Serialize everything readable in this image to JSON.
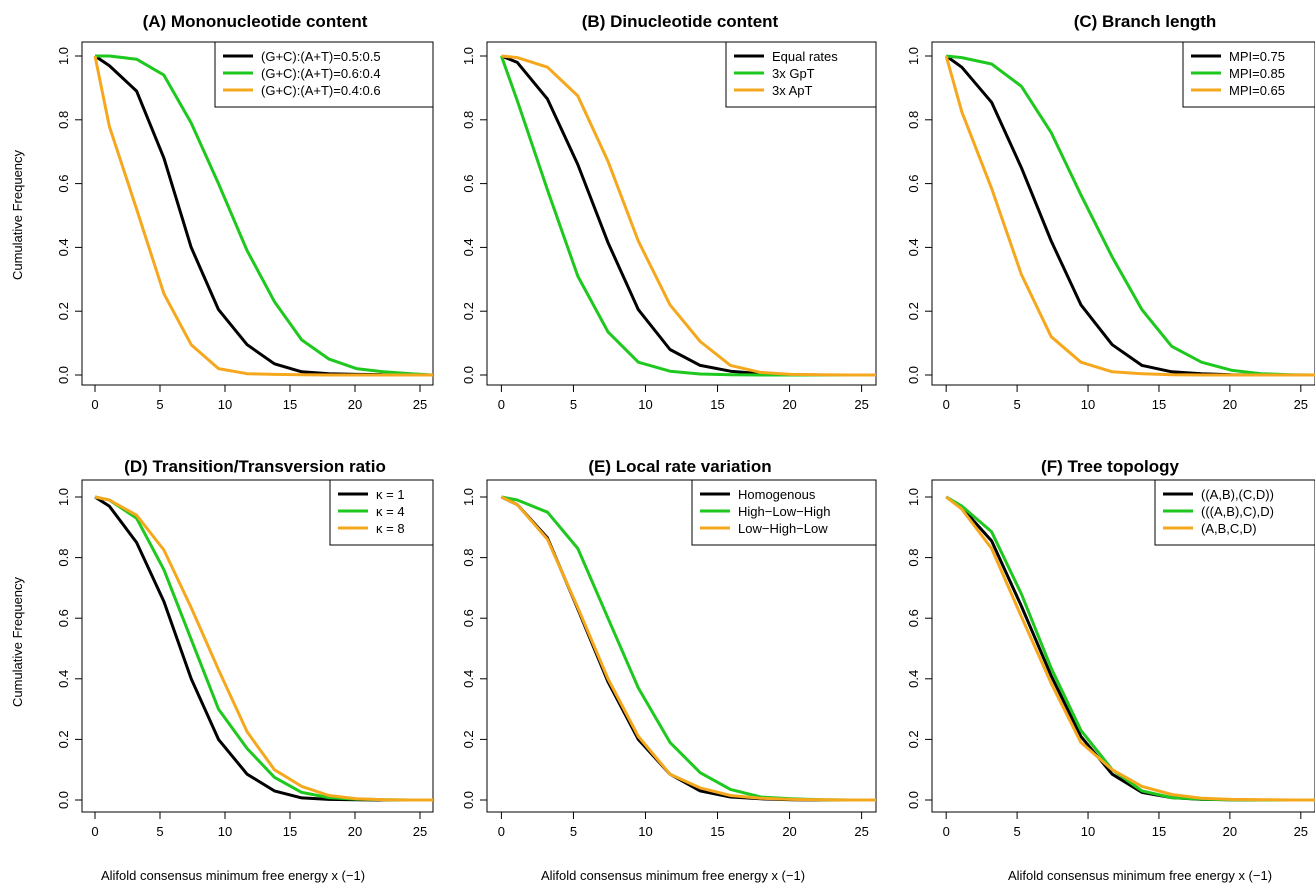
{
  "figure": {
    "xlabel": "Alifold consensus minimum free energy x (−1)",
    "ylabel": "Cumulative Frequency"
  },
  "colors": {
    "black": "#000000",
    "green": "#1ec81e",
    "orange": "#f5a81e"
  },
  "chart_data": [
    {
      "type": "line",
      "title": "(A) Mononucleotide content",
      "xlabel": "Alifold consensus minimum free energy x (−1)",
      "ylabel": "Cumulative Frequency",
      "xlim": [
        -1,
        26
      ],
      "ylim": [
        0,
        1
      ],
      "xticks": [
        "0",
        "5",
        "10",
        "15",
        "20",
        "25"
      ],
      "yticks": [
        "0.0",
        "0.2",
        "0.4",
        "0.6",
        "0.8",
        "1.0"
      ],
      "legend_position": "top-right",
      "x": [
        0,
        1.1,
        3.2,
        5.3,
        7.4,
        9.5,
        11.7,
        13.8,
        15.9,
        18,
        20.1,
        22.2,
        24.3,
        26
      ],
      "series": [
        {
          "name": "(G+C):(A+T)=0.5:0.5",
          "color": "#000000",
          "values": [
            1.0,
            0.97,
            0.89,
            0.68,
            0.4,
            0.205,
            0.095,
            0.035,
            0.01,
            0.004,
            0.002,
            0.001,
            0.0,
            0.0
          ]
        },
        {
          "name": "(G+C):(A+T)=0.6:0.4",
          "color": "#1ec81e",
          "values": [
            1.0,
            1.0,
            0.99,
            0.94,
            0.79,
            0.6,
            0.39,
            0.23,
            0.11,
            0.05,
            0.02,
            0.01,
            0.004,
            0.0
          ]
        },
        {
          "name": "(G+C):(A+T)=0.4:0.6",
          "color": "#f5a81e",
          "values": [
            1.0,
            0.78,
            0.52,
            0.255,
            0.095,
            0.02,
            0.004,
            0.002,
            0.001,
            0.0,
            0.0,
            0.0,
            0.0,
            0.0
          ]
        }
      ]
    },
    {
      "type": "line",
      "title": "(B) Dinucleotide content",
      "xlabel": "Alifold consensus minimum free energy x (−1)",
      "ylabel": "",
      "xlim": [
        -1,
        26
      ],
      "ylim": [
        0,
        1
      ],
      "xticks": [
        "0",
        "5",
        "10",
        "15",
        "20",
        "25"
      ],
      "yticks": [
        "0.0",
        "0.2",
        "0.4",
        "0.6",
        "0.8",
        "1.0"
      ],
      "legend_position": "top-right",
      "x": [
        0,
        1.1,
        3.2,
        5.3,
        7.4,
        9.5,
        11.7,
        13.8,
        15.9,
        18,
        20.1,
        22.2,
        24.3,
        26
      ],
      "series": [
        {
          "name": "Equal rates",
          "color": "#000000",
          "values": [
            1.0,
            0.98,
            0.865,
            0.66,
            0.415,
            0.205,
            0.08,
            0.03,
            0.012,
            0.004,
            0.001,
            0.0,
            0.0,
            0.0
          ]
        },
        {
          "name": "3x GpT",
          "color": "#1ec81e",
          "values": [
            1.0,
            0.86,
            0.58,
            0.31,
            0.135,
            0.04,
            0.012,
            0.003,
            0.001,
            0.0,
            0.0,
            0.0,
            0.0,
            0.0
          ]
        },
        {
          "name": "3x ApT",
          "color": "#f5a81e",
          "values": [
            1.0,
            0.995,
            0.965,
            0.875,
            0.67,
            0.42,
            0.22,
            0.105,
            0.03,
            0.008,
            0.002,
            0.001,
            0.0,
            0.0
          ]
        }
      ]
    },
    {
      "type": "line",
      "title": "(C) Branch length",
      "xlabel": "Alifold consensus minimum free energy x (−1)",
      "ylabel": "",
      "xlim": [
        -1,
        26
      ],
      "ylim": [
        0,
        1
      ],
      "xticks": [
        "0",
        "5",
        "10",
        "15",
        "20",
        "25"
      ],
      "yticks": [
        "0.0",
        "0.2",
        "0.4",
        "0.6",
        "0.8",
        "1.0"
      ],
      "legend_position": "top-right",
      "x": [
        0,
        1.1,
        3.2,
        5.3,
        7.4,
        9.5,
        11.7,
        13.8,
        15.9,
        18,
        20.1,
        22.2,
        24.3,
        26
      ],
      "series": [
        {
          "name": "MPI=0.75",
          "color": "#000000",
          "values": [
            1.0,
            0.965,
            0.855,
            0.65,
            0.42,
            0.22,
            0.095,
            0.03,
            0.01,
            0.004,
            0.001,
            0.0,
            0.0,
            0.0
          ]
        },
        {
          "name": "MPI=0.85",
          "color": "#1ec81e",
          "values": [
            1.0,
            0.995,
            0.975,
            0.905,
            0.76,
            0.565,
            0.37,
            0.205,
            0.09,
            0.04,
            0.015,
            0.004,
            0.001,
            0.0
          ]
        },
        {
          "name": "MPI=0.65",
          "color": "#f5a81e",
          "values": [
            1.0,
            0.825,
            0.585,
            0.315,
            0.12,
            0.04,
            0.01,
            0.004,
            0.001,
            0.0,
            0.0,
            0.0,
            0.0,
            0.0
          ]
        }
      ]
    },
    {
      "type": "line",
      "title": "(D) Transition/Transversion ratio",
      "xlabel": "Alifold consensus minimum free energy x (−1)",
      "ylabel": "Cumulative Frequency",
      "xlim": [
        -1,
        26
      ],
      "ylim": [
        0,
        1
      ],
      "xticks": [
        "0",
        "5",
        "10",
        "15",
        "20",
        "25"
      ],
      "yticks": [
        "0.0",
        "0.2",
        "0.4",
        "0.6",
        "0.8",
        "1.0"
      ],
      "legend_position": "top-right",
      "x": [
        0,
        1.1,
        3.2,
        5.3,
        7.4,
        9.5,
        11.7,
        13.8,
        15.9,
        18,
        20.1,
        22.2,
        24.3,
        26
      ],
      "series": [
        {
          "name": "κ = 1",
          "color": "#000000",
          "values": [
            1.0,
            0.97,
            0.85,
            0.655,
            0.4,
            0.2,
            0.085,
            0.03,
            0.007,
            0.002,
            0.001,
            0.0,
            0.0,
            0.0
          ]
        },
        {
          "name": "κ = 4",
          "color": "#1ec81e",
          "values": [
            1.0,
            0.99,
            0.93,
            0.76,
            0.53,
            0.3,
            0.17,
            0.075,
            0.025,
            0.008,
            0.003,
            0.001,
            0.0,
            0.0
          ]
        },
        {
          "name": "κ = 8",
          "color": "#f5a81e",
          "values": [
            1.0,
            0.99,
            0.94,
            0.825,
            0.635,
            0.43,
            0.225,
            0.1,
            0.045,
            0.015,
            0.004,
            0.001,
            0.0,
            0.0
          ]
        }
      ]
    },
    {
      "type": "line",
      "title": "(E) Local rate variation",
      "xlabel": "Alifold consensus minimum free energy x (−1)",
      "ylabel": "",
      "xlim": [
        -1,
        26
      ],
      "ylim": [
        0,
        1
      ],
      "xticks": [
        "0",
        "5",
        "10",
        "15",
        "20",
        "25"
      ],
      "yticks": [
        "0.0",
        "0.2",
        "0.4",
        "0.6",
        "0.8",
        "1.0"
      ],
      "legend_position": "top-right",
      "x": [
        0,
        1.1,
        3.2,
        5.3,
        7.4,
        9.5,
        11.7,
        13.8,
        15.9,
        18,
        20.1,
        22.2,
        24.3,
        26
      ],
      "series": [
        {
          "name": "Homogenous",
          "color": "#000000",
          "values": [
            1.0,
            0.975,
            0.865,
            0.63,
            0.39,
            0.2,
            0.085,
            0.03,
            0.01,
            0.004,
            0.001,
            0.0,
            0.0,
            0.0
          ]
        },
        {
          "name": "High−Low−High",
          "color": "#1ec81e",
          "values": [
            1.0,
            0.99,
            0.95,
            0.83,
            0.6,
            0.37,
            0.19,
            0.09,
            0.035,
            0.01,
            0.004,
            0.001,
            0.0,
            0.0
          ]
        },
        {
          "name": "Low−High−Low",
          "color": "#f5a81e",
          "values": [
            1.0,
            0.975,
            0.86,
            0.635,
            0.4,
            0.21,
            0.085,
            0.04,
            0.015,
            0.006,
            0.002,
            0.001,
            0.0,
            0.0
          ]
        }
      ]
    },
    {
      "type": "line",
      "title": "(F) Tree topology",
      "xlabel": "Alifold consensus minimum free energy x (−1)",
      "ylabel": "",
      "xlim": [
        -1,
        26
      ],
      "ylim": [
        0,
        1
      ],
      "xticks": [
        "0",
        "5",
        "10",
        "15",
        "20",
        "25"
      ],
      "yticks": [
        "0.0",
        "0.2",
        "0.4",
        "0.6",
        "0.8",
        "1.0"
      ],
      "legend_position": "top-right",
      "x": [
        0,
        1.1,
        3.2,
        5.3,
        7.4,
        9.5,
        11.7,
        13.8,
        15.9,
        18,
        20.1,
        22.2,
        24.3,
        26
      ],
      "series": [
        {
          "name": "((A,B),(C,D))",
          "color": "#000000",
          "values": [
            1.0,
            0.965,
            0.855,
            0.64,
            0.41,
            0.21,
            0.085,
            0.025,
            0.008,
            0.002,
            0.001,
            0.0,
            0.0,
            0.0
          ]
        },
        {
          "name": "(((A,B),C),D)",
          "color": "#1ec81e",
          "values": [
            1.0,
            0.97,
            0.885,
            0.68,
            0.435,
            0.23,
            0.1,
            0.03,
            0.008,
            0.003,
            0.001,
            0.0,
            0.0,
            0.0
          ]
        },
        {
          "name": "(A,B,C,D)",
          "color": "#f5a81e",
          "values": [
            1.0,
            0.96,
            0.83,
            0.605,
            0.385,
            0.19,
            0.1,
            0.045,
            0.018,
            0.006,
            0.002,
            0.001,
            0.0,
            0.0
          ]
        }
      ]
    }
  ]
}
